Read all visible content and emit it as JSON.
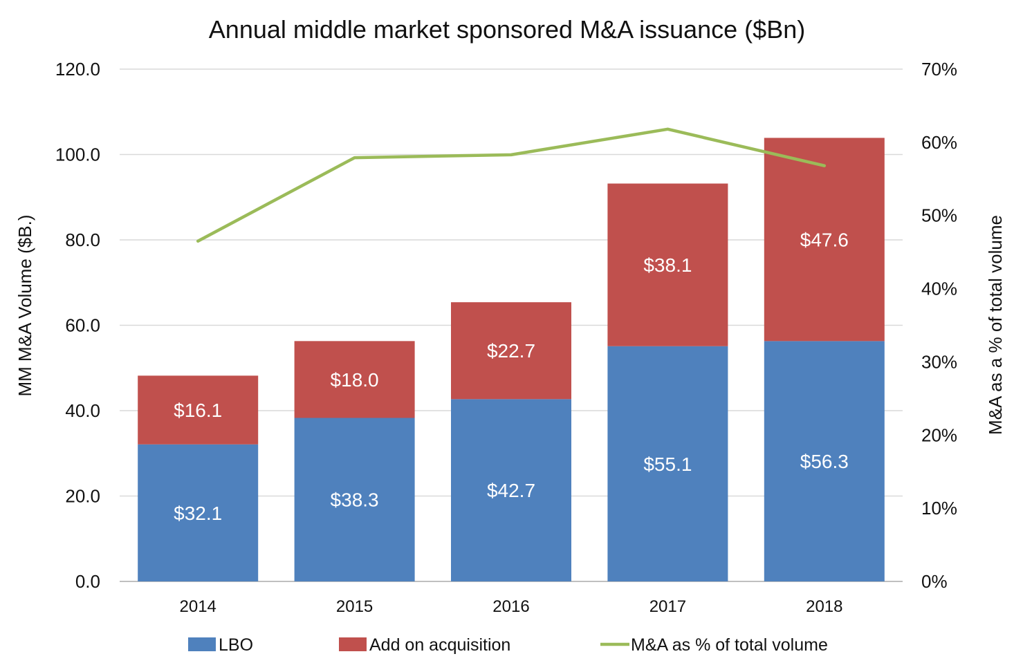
{
  "chart_data": {
    "type": "bar",
    "stacked": true,
    "title": "Annual middle market sponsored M&A issuance ($Bn)",
    "categories": [
      "2014",
      "2015",
      "2016",
      "2017",
      "2018"
    ],
    "series": [
      {
        "name": "LBO",
        "type": "bar",
        "axis": "left",
        "color": "#4F81BD",
        "values": [
          32.1,
          38.3,
          42.7,
          55.1,
          56.3
        ],
        "labels": [
          "$32.1",
          "$38.3",
          "$42.7",
          "$55.1",
          "$56.3"
        ]
      },
      {
        "name": "Add on acquisition",
        "type": "bar",
        "axis": "left",
        "color": "#C0504D",
        "values": [
          16.1,
          18.0,
          22.7,
          38.1,
          47.6
        ],
        "labels": [
          "$16.1",
          "$18.0",
          "$22.7",
          "$38.1",
          "$47.6"
        ]
      },
      {
        "name": "M&A as % of total volume",
        "type": "line",
        "axis": "right",
        "color": "#9BBB59",
        "values": [
          46.5,
          57.9,
          58.3,
          61.8,
          56.8
        ]
      }
    ],
    "ylabel": "MM M&A Volume ($B.)",
    "ylim": [
      0,
      120
    ],
    "yticks": [
      "0.0",
      "20.0",
      "40.0",
      "60.0",
      "80.0",
      "100.0",
      "120.0"
    ],
    "y2label": "M&A as a % of total volume",
    "y2lim": [
      0,
      70
    ],
    "y2ticks": [
      "0%",
      "10%",
      "20%",
      "30%",
      "40%",
      "50%",
      "60%",
      "70%"
    ],
    "grid": true,
    "legend_position": "bottom",
    "legend": [
      "LBO",
      "Add on acquisition",
      "M&A as % of total volume"
    ]
  }
}
